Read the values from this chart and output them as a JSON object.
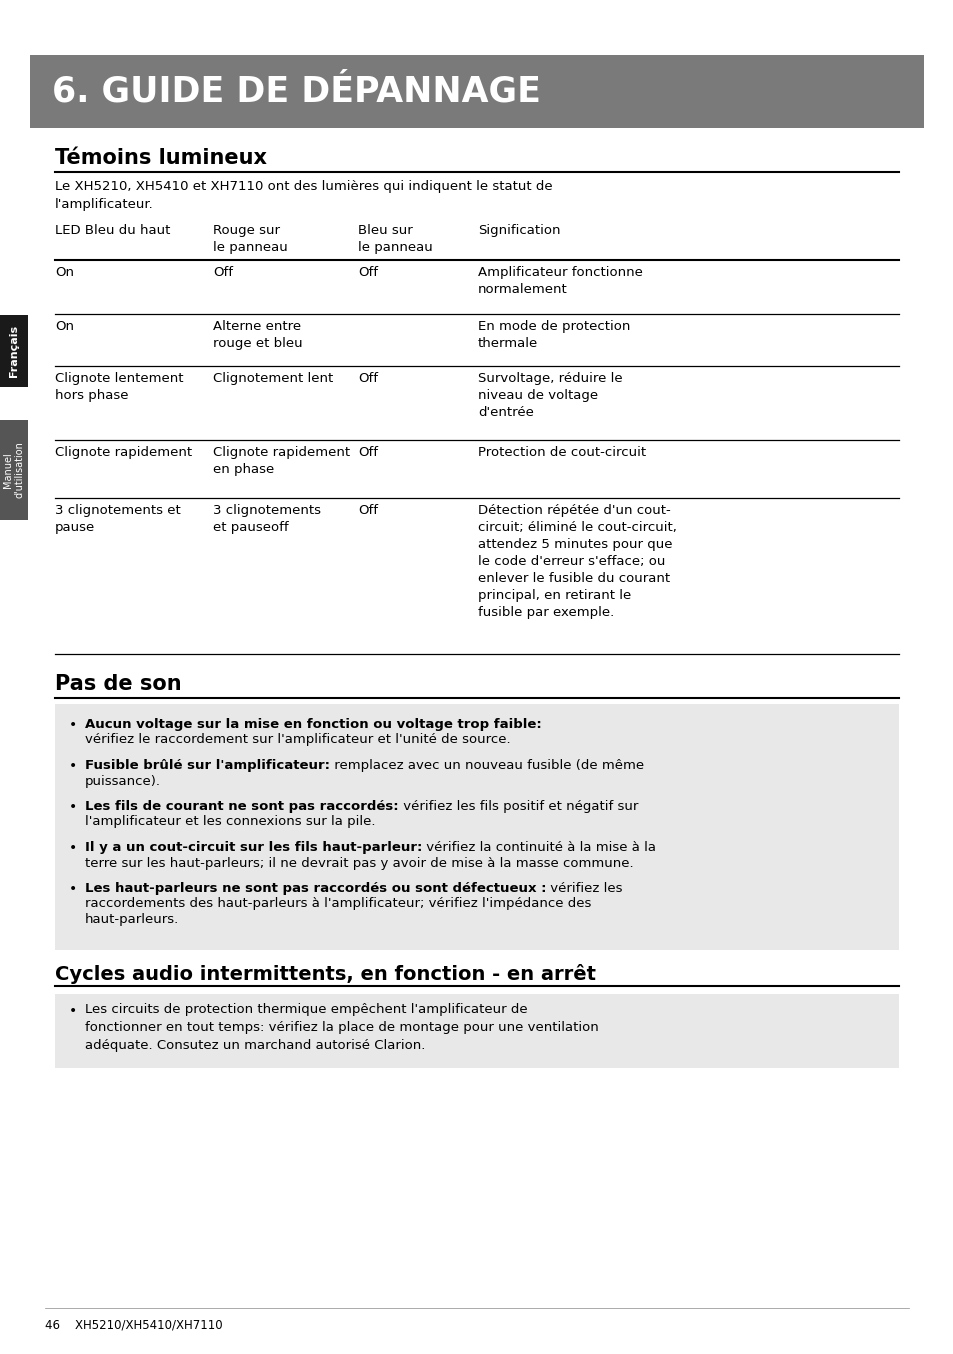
{
  "title_banner": "6. GUIDE DE DÉPANNAGE",
  "banner_bg": "#7a7a7a",
  "banner_color": "#ffffff",
  "section1_title": "Témoins lumineux",
  "section1_intro": "Le XH5210, XH5410 et XH7110 ont des lumières qui indiquent le statut de\nl'amplificateur.",
  "table_headers": [
    "LED Bleu du haut",
    "Rouge sur\nle panneau",
    "Bleu sur\nle panneau",
    "Signification"
  ],
  "table_rows": [
    [
      "On",
      "Off",
      "Off",
      "Amplificateur fonctionne\nnormalement"
    ],
    [
      "On",
      "Alterne entre\nrouge et bleu",
      "",
      "En mode de protection\nthermale"
    ],
    [
      "Clignote lentement\nhors phase",
      "Clignotement lent",
      "Off",
      "Survoltage, réduire le\nniveau de voltage\nd'entrée"
    ],
    [
      "Clignote rapidement",
      "Clignote rapidement\nen phase",
      "Off",
      "Protection de cout-circuit"
    ],
    [
      "3 clignotements et\npause",
      "3 clignotements\net pauseoff",
      "Off",
      "Détection répétée d'un cout-\ncircuit; éliminé le cout-circuit,\nattendez 5 minutes pour que\nle code d'erreur s'efface; ou\nenlever le fusible du courant\nprincipal, en retirant le\nfusible par exemple."
    ]
  ],
  "table_row_heights": [
    48,
    46,
    68,
    52,
    150
  ],
  "section2_title": "Pas de son",
  "section2_items": [
    {
      "bold_line": "Aucun voltage sur la mise en fonction ou voltage trop faible:",
      "bold_inline": "",
      "normal_line": "vérifiez le raccordement sur l'amplificateur et l'unité de source.",
      "layout": "bold_then_normal"
    },
    {
      "bold_inline": "Fusible brûlé sur l'amplificateur:",
      "normal_line": " remplacez avec un nouveau fusible (de même\npuissance).",
      "layout": "inline"
    },
    {
      "bold_inline": "Les fils de courant ne sont pas raccordés:",
      "normal_line": " vérifiez les fils positif et négatif sur\nl'amplificateur et les connexions sur la pile.",
      "layout": "inline"
    },
    {
      "bold_inline": "Il y a un cout-circuit sur les fils haut-parleur:",
      "normal_line": " vérifiez la continuité à la mise à la\nterre sur les haut-parleurs; il ne devrait pas y avoir de mise à la masse commune.",
      "layout": "inline"
    },
    {
      "bold_inline": "Les haut-parleurs ne sont pas raccordés ou sont défectueux :",
      "normal_line": " vérifiez les\nraccordements des haut-parleurs à l'amplificateur; vérifiez l'impédance des\nhaut-parleurs.",
      "layout": "inline"
    }
  ],
  "section3_title": "Cycles audio intermittents, en fonction - en arrêt",
  "section3_text": "Les circuits de protection thermique empêchent l'amplificateur de\nfonctionner en tout temps: vérifiez la place de montage pour une ventilation\nadéquate. Consutez un marchand autorisé Clarion.",
  "footer_text": "46    XH5210/XH5410/XH7110",
  "page_bg": "#ffffff",
  "text_color": "#000000",
  "box_bg": "#e8e8e8",
  "tab1_bg": "#1a1a1a",
  "tab2_bg": "#555555"
}
